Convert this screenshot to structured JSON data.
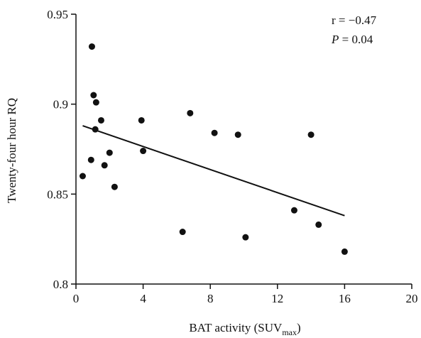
{
  "chart_data": {
    "type": "scatter",
    "xlabel": "BAT activity (SUV",
    "xlabel_sub": "max",
    "xlabel_close": ")",
    "ylabel": "Twenty-four hour RQ",
    "xlim": [
      0,
      20
    ],
    "ylim": [
      0.8,
      0.95
    ],
    "xticks": [
      0,
      4,
      8,
      12,
      16,
      20
    ],
    "yticks": [
      0.8,
      0.85,
      0.9,
      0.95
    ],
    "xtick_labels": [
      "0",
      "4",
      "8",
      "12",
      "16",
      "20"
    ],
    "ytick_labels": [
      "0.8",
      "0.85",
      "0.9",
      "0.95"
    ],
    "grid": false,
    "points": [
      {
        "x": 0.4,
        "y": 0.86
      },
      {
        "x": 0.9,
        "y": 0.869
      },
      {
        "x": 0.95,
        "y": 0.932
      },
      {
        "x": 1.05,
        "y": 0.905
      },
      {
        "x": 1.15,
        "y": 0.886
      },
      {
        "x": 1.2,
        "y": 0.901
      },
      {
        "x": 1.5,
        "y": 0.891
      },
      {
        "x": 1.7,
        "y": 0.866
      },
      {
        "x": 2.0,
        "y": 0.873
      },
      {
        "x": 2.3,
        "y": 0.854
      },
      {
        "x": 3.9,
        "y": 0.891
      },
      {
        "x": 4.0,
        "y": 0.874
      },
      {
        "x": 6.35,
        "y": 0.829
      },
      {
        "x": 6.8,
        "y": 0.895
      },
      {
        "x": 8.25,
        "y": 0.884
      },
      {
        "x": 9.65,
        "y": 0.883
      },
      {
        "x": 10.1,
        "y": 0.826
      },
      {
        "x": 13.0,
        "y": 0.841
      },
      {
        "x": 14.0,
        "y": 0.883
      },
      {
        "x": 14.45,
        "y": 0.833
      },
      {
        "x": 16.0,
        "y": 0.818
      }
    ],
    "trendline": {
      "x": [
        0.4,
        16.0
      ],
      "y": [
        0.888,
        0.838
      ]
    },
    "annotations": {
      "r_text": "r = −0.47",
      "p_label": "P",
      "p_value": " = 0.04"
    }
  }
}
